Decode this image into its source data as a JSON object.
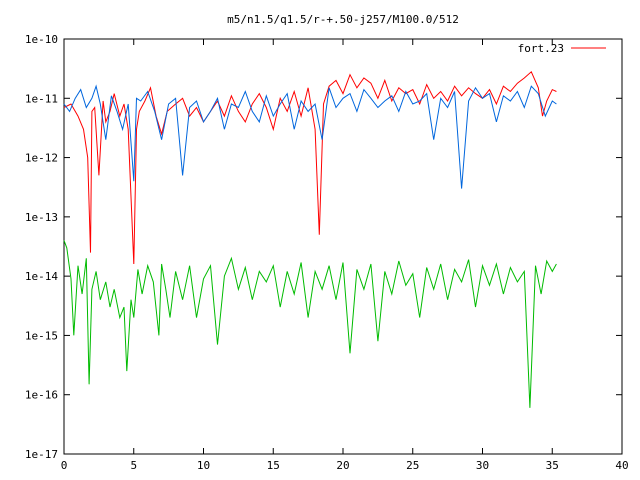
{
  "chart_data": {
    "type": "line",
    "title": "m5/n1.5/q1.5/r-+.50-j257/M100.0/512",
    "xlabel": "",
    "ylabel": "",
    "xlim": [
      0,
      40
    ],
    "ylim": [
      1e-17,
      1e-10
    ],
    "y_scale": "log",
    "x_ticks": [
      0,
      5,
      10,
      15,
      20,
      25,
      30,
      35,
      40
    ],
    "x_tick_labels": [
      "0",
      "5",
      "10",
      "15",
      "20",
      "25",
      "30",
      "35",
      "40"
    ],
    "y_ticks": [
      1e-10,
      1e-11,
      1e-12,
      1e-13,
      1e-14,
      1e-15,
      1e-16,
      1e-17
    ],
    "y_tick_labels": [
      "1e-10",
      "1e-11",
      "1e-12",
      "1e-13",
      "1e-14",
      "1e-15",
      "1e-16",
      "1e-17"
    ],
    "grid": false,
    "legend": {
      "position": "top-right",
      "entries": [
        "fort.23"
      ]
    },
    "series": [
      {
        "name": "fort.23",
        "color": "#ff0000",
        "x": [
          0,
          0.5,
          1.0,
          1.4,
          1.7,
          1.9,
          2.0,
          2.2,
          2.5,
          2.8,
          3.0,
          3.3,
          3.6,
          4.0,
          4.3,
          4.6,
          5.0,
          5.2,
          5.4,
          5.8,
          6.2,
          6.6,
          7.0,
          7.4,
          8.0,
          8.5,
          9.0,
          9.5,
          10.0,
          10.5,
          11.0,
          11.5,
          12.0,
          12.5,
          13.0,
          13.5,
          14.0,
          14.5,
          15.0,
          15.5,
          16.0,
          16.5,
          17.0,
          17.5,
          18.0,
          18.3,
          18.6,
          19.0,
          19.5,
          20.0,
          20.5,
          21.0,
          21.5,
          22.0,
          22.5,
          23.0,
          23.5,
          24.0,
          24.5,
          25.0,
          25.5,
          26.0,
          26.5,
          27.0,
          27.5,
          28.0,
          28.5,
          29.0,
          29.5,
          30.0,
          30.5,
          31.0,
          31.5,
          32.0,
          32.5,
          33.0,
          33.5,
          34.0,
          34.3,
          34.6,
          35.0,
          35.3
        ],
        "y": [
          7e-12,
          8e-12,
          5e-12,
          3e-12,
          1e-12,
          2.5e-14,
          6e-12,
          7e-12,
          5e-13,
          9e-12,
          4e-12,
          6e-12,
          1.2e-11,
          5e-12,
          8e-12,
          3e-12,
          1.6e-14,
          3e-12,
          6e-12,
          9e-12,
          1.5e-11,
          5e-12,
          2.5e-12,
          6e-12,
          8e-12,
          1e-11,
          5e-12,
          7e-12,
          4e-12,
          6e-12,
          9e-12,
          5e-12,
          1.1e-11,
          6e-12,
          4e-12,
          8e-12,
          1.2e-11,
          7e-12,
          3e-12,
          1e-11,
          6e-12,
          1.3e-11,
          5e-12,
          1.5e-11,
          3e-12,
          5e-14,
          8e-12,
          1.6e-11,
          2e-11,
          1.2e-11,
          2.5e-11,
          1.5e-11,
          2.2e-11,
          1.8e-11,
          1e-11,
          2e-11,
          9e-12,
          1.5e-11,
          1.2e-11,
          1.4e-11,
          8e-12,
          1.7e-11,
          1e-11,
          1.3e-11,
          9e-12,
          1.6e-11,
          1.1e-11,
          1.5e-11,
          1.2e-11,
          1e-11,
          1.4e-11,
          8e-12,
          1.6e-11,
          1.3e-11,
          1.8e-11,
          2.2e-11,
          2.8e-11,
          1.5e-11,
          5e-12,
          9e-12,
          1.4e-11,
          1.3e-11
        ]
      },
      {
        "name": "",
        "color": "#0066dd",
        "x": [
          0,
          0.4,
          0.8,
          1.2,
          1.6,
          2.0,
          2.3,
          2.6,
          3.0,
          3.4,
          3.8,
          4.2,
          4.6,
          5.0,
          5.2,
          5.5,
          6.0,
          6.5,
          7.0,
          7.5,
          8.0,
          8.5,
          9.0,
          9.5,
          10.0,
          10.5,
          11.0,
          11.5,
          12.0,
          12.5,
          13.0,
          13.5,
          14.0,
          14.5,
          15.0,
          15.5,
          16.0,
          16.5,
          17.0,
          17.5,
          18.0,
          18.5,
          19.0,
          19.5,
          20.0,
          20.5,
          21.0,
          21.5,
          22.0,
          22.5,
          23.0,
          23.5,
          24.0,
          24.5,
          25.0,
          25.5,
          26.0,
          26.5,
          27.0,
          27.5,
          28.0,
          28.5,
          29.0,
          29.5,
          30.0,
          30.5,
          31.0,
          31.5,
          32.0,
          32.5,
          33.0,
          33.5,
          34.0,
          34.5,
          35.0,
          35.3
        ],
        "y": [
          8e-12,
          6e-12,
          1e-11,
          1.4e-11,
          7e-12,
          1e-11,
          1.6e-11,
          8e-12,
          2e-12,
          1.1e-11,
          6e-12,
          3e-12,
          8e-12,
          4e-13,
          1e-11,
          9e-12,
          1.3e-11,
          6e-12,
          2e-12,
          8e-12,
          1e-11,
          5e-13,
          7e-12,
          9e-12,
          4e-12,
          6e-12,
          1e-11,
          3e-12,
          8e-12,
          7e-12,
          1.3e-11,
          6e-12,
          4e-12,
          1.1e-11,
          5e-12,
          8e-12,
          1.2e-11,
          3e-12,
          9e-12,
          6e-12,
          8e-12,
          2e-12,
          1.5e-11,
          7e-12,
          1e-11,
          1.2e-11,
          6e-12,
          1.4e-11,
          1e-11,
          7e-12,
          9e-12,
          1.1e-11,
          6e-12,
          1.3e-11,
          8e-12,
          9e-12,
          1.2e-11,
          2e-12,
          1e-11,
          7e-12,
          1.3e-11,
          3e-13,
          9e-12,
          1.5e-11,
          1e-11,
          1.2e-11,
          4e-12,
          1.1e-11,
          9e-12,
          1.3e-11,
          7e-12,
          1.6e-11,
          1.2e-11,
          5e-12,
          9e-12,
          8e-12
        ]
      },
      {
        "name": "",
        "color": "#00bb00",
        "x": [
          0,
          0.2,
          0.5,
          0.7,
          1.0,
          1.3,
          1.6,
          1.8,
          2.0,
          2.3,
          2.6,
          3.0,
          3.3,
          3.6,
          4.0,
          4.3,
          4.5,
          4.8,
          5.0,
          5.3,
          5.6,
          6.0,
          6.4,
          6.8,
          7.0,
          7.3,
          7.6,
          8.0,
          8.5,
          9.0,
          9.5,
          10.0,
          10.5,
          11.0,
          11.5,
          12.0,
          12.5,
          13.0,
          13.5,
          14.0,
          14.5,
          15.0,
          15.5,
          16.0,
          16.5,
          17.0,
          17.5,
          18.0,
          18.5,
          19.0,
          19.5,
          20.0,
          20.5,
          21.0,
          21.5,
          22.0,
          22.5,
          23.0,
          23.5,
          24.0,
          24.5,
          25.0,
          25.5,
          26.0,
          26.5,
          27.0,
          27.5,
          28.0,
          28.5,
          29.0,
          29.5,
          30.0,
          30.5,
          31.0,
          31.5,
          32.0,
          32.5,
          33.0,
          33.4,
          33.8,
          34.2,
          34.6,
          35.0,
          35.3
        ],
        "y": [
          4e-14,
          3e-14,
          9e-15,
          1e-15,
          1.5e-14,
          5e-15,
          2e-14,
          1.5e-16,
          6e-15,
          1.2e-14,
          4e-15,
          8e-15,
          3e-15,
          6e-15,
          2e-15,
          3e-15,
          2.5e-16,
          4e-15,
          2e-15,
          1.3e-14,
          5e-15,
          1.5e-14,
          8e-15,
          1e-15,
          1.6e-14,
          6e-15,
          2e-15,
          1.2e-14,
          4e-15,
          1.5e-14,
          2e-15,
          9e-15,
          1.5e-14,
          7e-16,
          1e-14,
          2e-14,
          6e-15,
          1.4e-14,
          4e-15,
          1.2e-14,
          8e-15,
          1.5e-14,
          3e-15,
          1.2e-14,
          5e-15,
          1.7e-14,
          2e-15,
          1.2e-14,
          6e-15,
          1.5e-14,
          4e-15,
          1.7e-14,
          5e-16,
          1.3e-14,
          6e-15,
          1.6e-14,
          8e-16,
          1.2e-14,
          5e-15,
          1.8e-14,
          7e-15,
          1.1e-14,
          2e-15,
          1.4e-14,
          6e-15,
          1.6e-14,
          4e-15,
          1.3e-14,
          8e-15,
          1.9e-14,
          3e-15,
          1.5e-14,
          7e-15,
          1.6e-14,
          5e-15,
          1.4e-14,
          8e-15,
          1.2e-14,
          6e-17,
          1.5e-14,
          5e-15,
          1.8e-14,
          1.2e-14,
          1.6e-14
        ]
      }
    ]
  }
}
